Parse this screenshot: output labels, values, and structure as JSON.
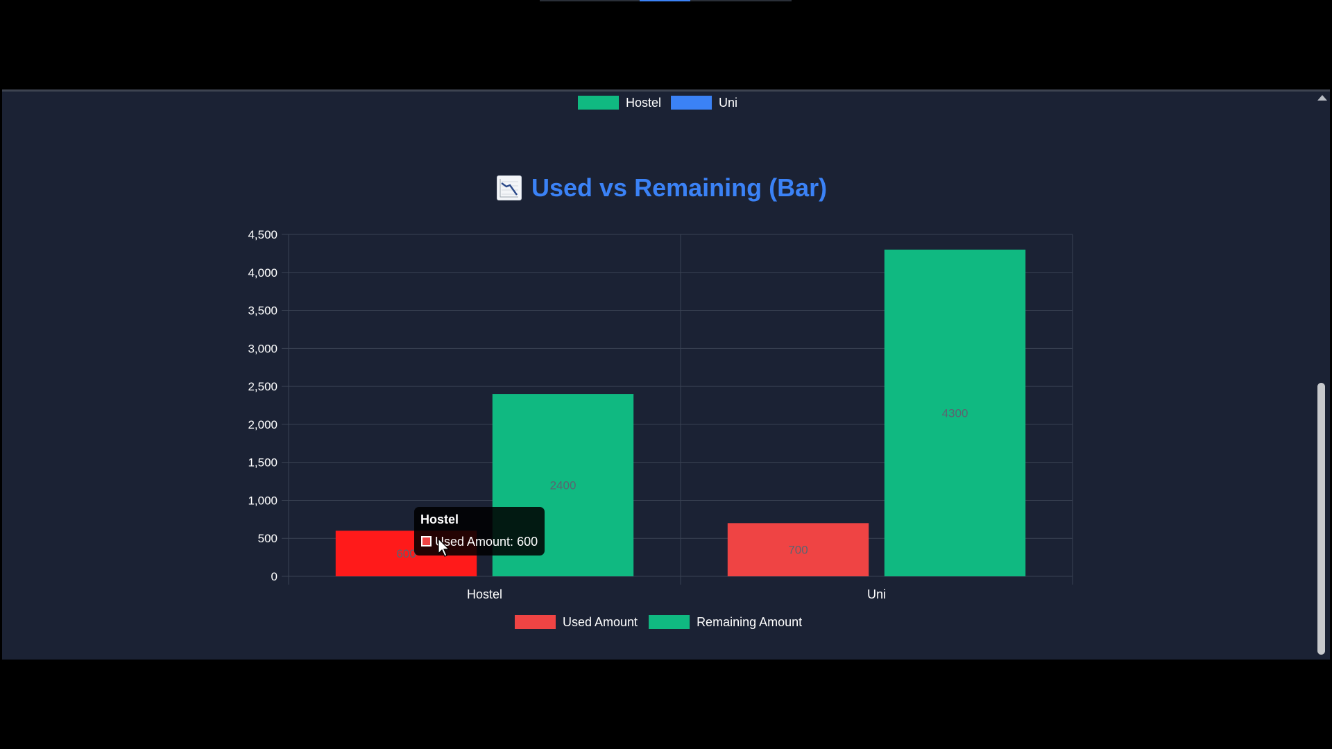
{
  "top_legend": {
    "items": [
      {
        "label": "Hostel",
        "color": "#10b981"
      },
      {
        "label": "Uni",
        "color": "#3b82f6"
      }
    ]
  },
  "chart_title": {
    "icon": "chart-decreasing-icon",
    "text": "Used vs Remaining (Bar)",
    "color": "#3b82f6"
  },
  "chart_data": {
    "type": "bar",
    "categories": [
      "Hostel",
      "Uni"
    ],
    "series": [
      {
        "name": "Used Amount",
        "values": [
          600,
          700
        ],
        "color": "#ef4444"
      },
      {
        "name": "Remaining Amount",
        "values": [
          2400,
          4300
        ],
        "color": "#10b981"
      }
    ],
    "ylim": [
      0,
      4500
    ],
    "yticks": [
      0,
      500,
      1000,
      1500,
      2000,
      2500,
      3000,
      3500,
      4000,
      4500
    ],
    "ytick_labels": [
      "0",
      "500",
      "1,000",
      "1,500",
      "2,000",
      "2,500",
      "3,000",
      "3,500",
      "4,000",
      "4,500"
    ],
    "data_labels": [
      [
        "600",
        "700"
      ],
      [
        "2400",
        "4300"
      ]
    ],
    "grid": true,
    "legend_position": "bottom",
    "highlight": {
      "series": 0,
      "category": 0,
      "color": "#ff1a1a"
    }
  },
  "tooltip": {
    "title": "Hostel",
    "label": "Used Amount: 600",
    "swatch_color": "#ef4444"
  }
}
